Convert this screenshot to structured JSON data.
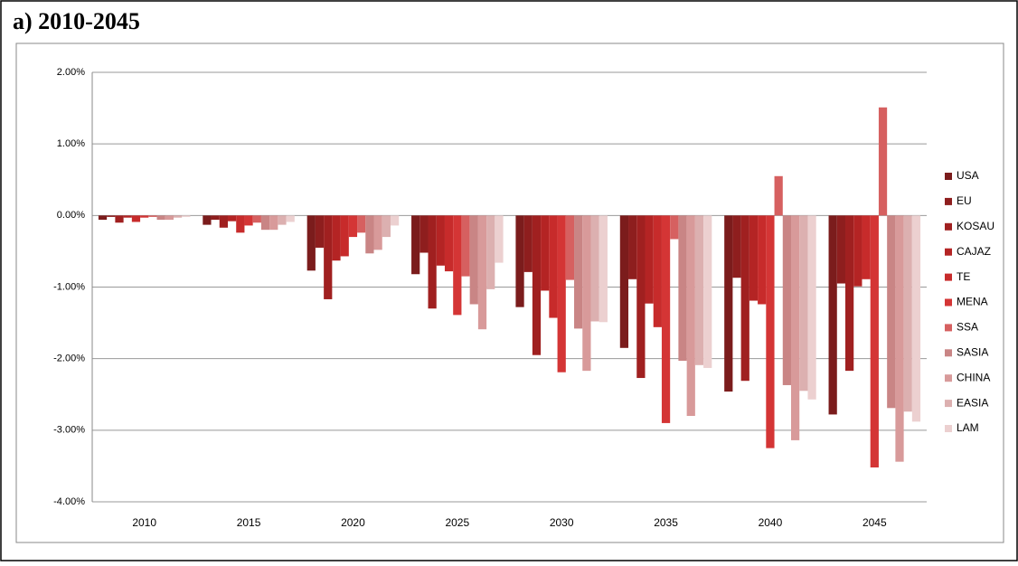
{
  "chart_data": {
    "type": "bar",
    "title": "a)  2010-2045",
    "categories": [
      "2010",
      "2015",
      "2020",
      "2025",
      "2030",
      "2035",
      "2040",
      "2045"
    ],
    "ylim": [
      -4,
      2
    ],
    "yticks": [
      {
        "value": -4,
        "label": "-4.00%"
      },
      {
        "value": -3,
        "label": "-3.00%"
      },
      {
        "value": -2,
        "label": "-2.00%"
      },
      {
        "value": -1,
        "label": "-1.00%"
      },
      {
        "value": 0,
        "label": "0.00%"
      },
      {
        "value": 1,
        "label": "1.00%"
      },
      {
        "value": 2,
        "label": "2.00%"
      }
    ],
    "grid": true,
    "legend": "right",
    "series": [
      {
        "name": "USA",
        "color": "#7b1c1c",
        "values": [
          -0.06,
          -0.13,
          -0.77,
          -0.82,
          -1.28,
          -1.85,
          -2.46,
          -2.78
        ]
      },
      {
        "name": "EU",
        "color": "#8e1e1e",
        "values": [
          -0.02,
          -0.06,
          -0.45,
          -0.52,
          -0.79,
          -0.89,
          -0.87,
          -0.95
        ]
      },
      {
        "name": "KOSAU",
        "color": "#a02020",
        "values": [
          -0.1,
          -0.17,
          -1.17,
          -1.3,
          -1.95,
          -2.27,
          -2.31,
          -2.17
        ]
      },
      {
        "name": "CAJAZ",
        "color": "#b42424",
        "values": [
          -0.03,
          -0.08,
          -0.63,
          -0.7,
          -1.05,
          -1.23,
          -1.19,
          -0.99
        ]
      },
      {
        "name": "TE",
        "color": "#c72b2b",
        "values": [
          -0.09,
          -0.24,
          -0.57,
          -0.78,
          -1.43,
          -1.56,
          -1.24,
          -0.89
        ]
      },
      {
        "name": "MENA",
        "color": "#d43535",
        "values": [
          -0.03,
          -0.14,
          -0.3,
          -1.39,
          -2.19,
          -2.9,
          -3.25,
          -3.52
        ]
      },
      {
        "name": "SSA",
        "color": "#d66060",
        "values": [
          -0.02,
          -0.1,
          -0.24,
          -0.85,
          -0.9,
          -0.33,
          0.55,
          1.51
        ]
      },
      {
        "name": "SASIA",
        "color": "#c98585",
        "values": [
          -0.06,
          -0.2,
          -0.53,
          -1.24,
          -1.58,
          -2.03,
          -2.37,
          -2.69
        ]
      },
      {
        "name": "CHINA",
        "color": "#d89a9a",
        "values": [
          -0.06,
          -0.2,
          -0.48,
          -1.59,
          -2.17,
          -2.8,
          -3.14,
          -3.44
        ]
      },
      {
        "name": "EASIA",
        "color": "#dcb0b0",
        "values": [
          -0.03,
          -0.13,
          -0.3,
          -1.03,
          -1.48,
          -2.09,
          -2.45,
          -2.74
        ]
      },
      {
        "name": "LAM",
        "color": "#ecd0d0",
        "values": [
          -0.02,
          -0.09,
          -0.14,
          -0.66,
          -1.49,
          -2.13,
          -2.57,
          -2.88
        ]
      }
    ]
  }
}
